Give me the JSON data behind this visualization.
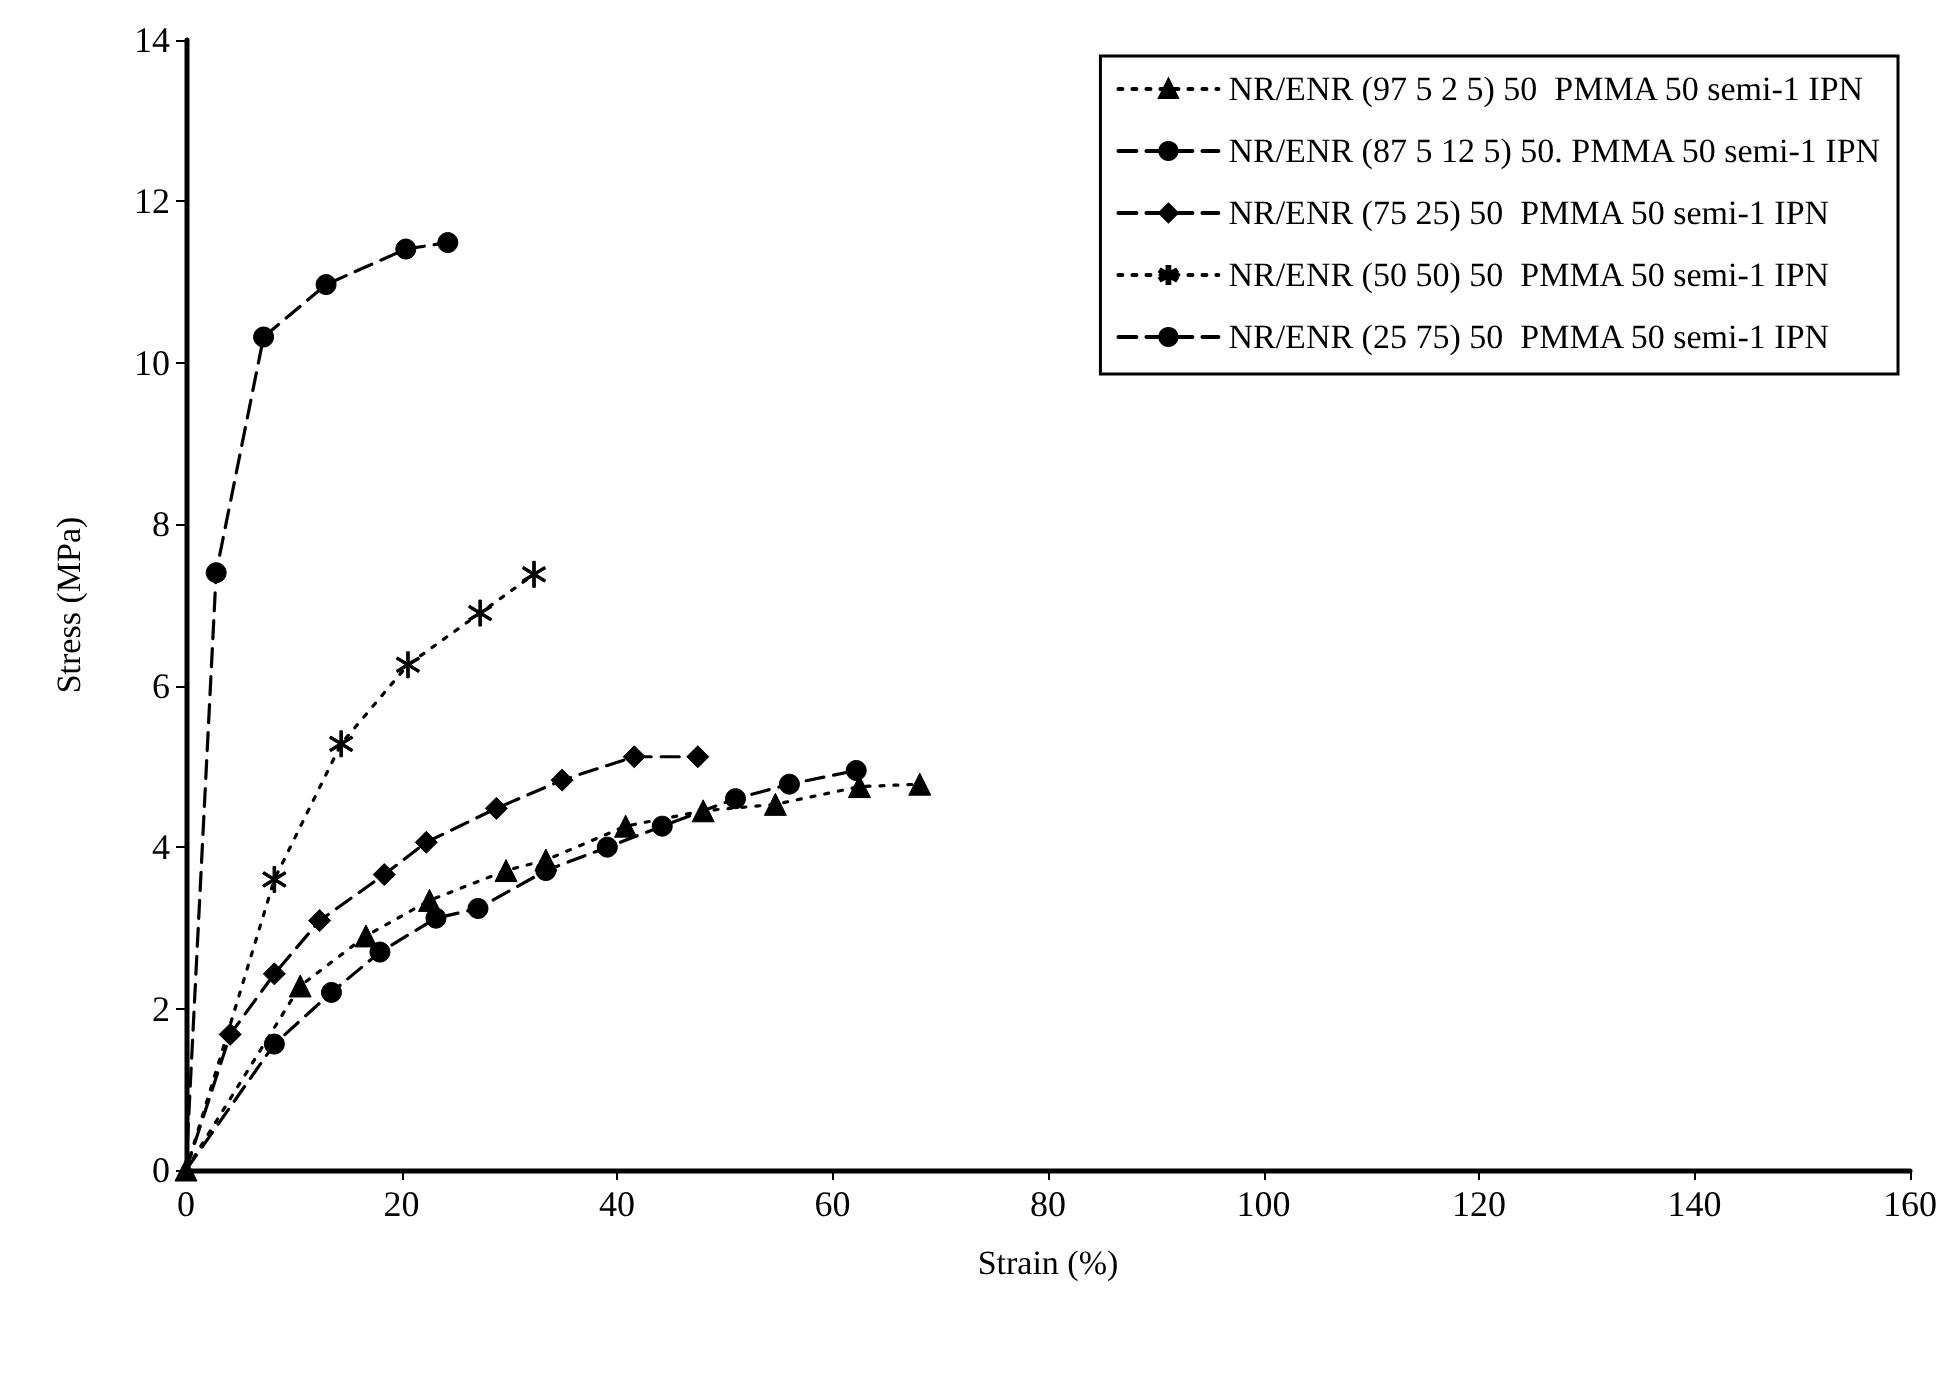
{
  "chart_data": {
    "type": "line",
    "xlabel": "Strain (%)",
    "ylabel": "Stress (MPa)",
    "xlim": [
      0,
      160
    ],
    "xticks": [
      0,
      20,
      40,
      60,
      80,
      100,
      120,
      140,
      160
    ],
    "ylim": [
      0,
      14
    ],
    "yticks": [
      0,
      2,
      4,
      6,
      8,
      10,
      12,
      14
    ],
    "grid": false,
    "legend": "top right",
    "series": [
      {
        "name": "NR/ENR (97 5 2 5) 50  PMMA 50 semi-1 IPN",
        "color": "#000000",
        "marker": "triangle",
        "line_style": "dotted",
        "x": [
          0,
          10.6,
          16.7,
          22.6,
          29.7,
          33.4,
          40.8,
          48,
          54.7,
          62.5,
          68.1
        ],
        "values": [
          0,
          2.28,
          2.9,
          3.34,
          3.71,
          3.84,
          4.26,
          4.45,
          4.53,
          4.75,
          4.78
        ]
      },
      {
        "name": "NR/ENR (87 5 12 5) 50. PMMA 50 semi-1 IPN",
        "color": "#000000",
        "marker": "circle",
        "line_style": "dashed",
        "x": [
          0,
          8.2,
          13.5,
          18,
          23.2,
          27.1,
          33.4,
          39.1,
          44.2,
          51,
          56,
          62.2
        ],
        "values": [
          0,
          1.56,
          2.2,
          2.7,
          3.12,
          3.24,
          3.71,
          4.0,
          4.26,
          4.6,
          4.78,
          4.95
        ]
      },
      {
        "name": "NR/ENR (75 25) 50  PMMA 50 semi-1 IPN",
        "color": "#000000",
        "marker": "diamond",
        "line_style": "dashed",
        "x": [
          0,
          4.1,
          8.2,
          12.4,
          18.4,
          22.3,
          28.8,
          34.9,
          41.6,
          47.5
        ],
        "values": [
          0,
          1.68,
          2.43,
          3.09,
          3.66,
          4.06,
          4.48,
          4.83,
          5.12,
          5.12
        ]
      },
      {
        "name": "NR/ENR (50 50) 50  PMMA 50 semi-1 IPN",
        "color": "#000000",
        "marker": "star",
        "line_style": "dotted",
        "x": [
          0,
          8.2,
          14.4,
          20.6,
          27.3,
          32.3
        ],
        "values": [
          0,
          3.6,
          5.28,
          6.26,
          6.9,
          7.38
        ]
      },
      {
        "name": "NR/ENR (25 75) 50  PMMA 50 semi-1 IPN",
        "color": "#000000",
        "marker": "circle",
        "line_style": "dashed",
        "x": [
          0,
          2.8,
          7.2,
          13,
          20.4,
          24.3
        ],
        "values": [
          0,
          7.4,
          10.32,
          10.97,
          11.41,
          11.49
        ]
      }
    ]
  }
}
